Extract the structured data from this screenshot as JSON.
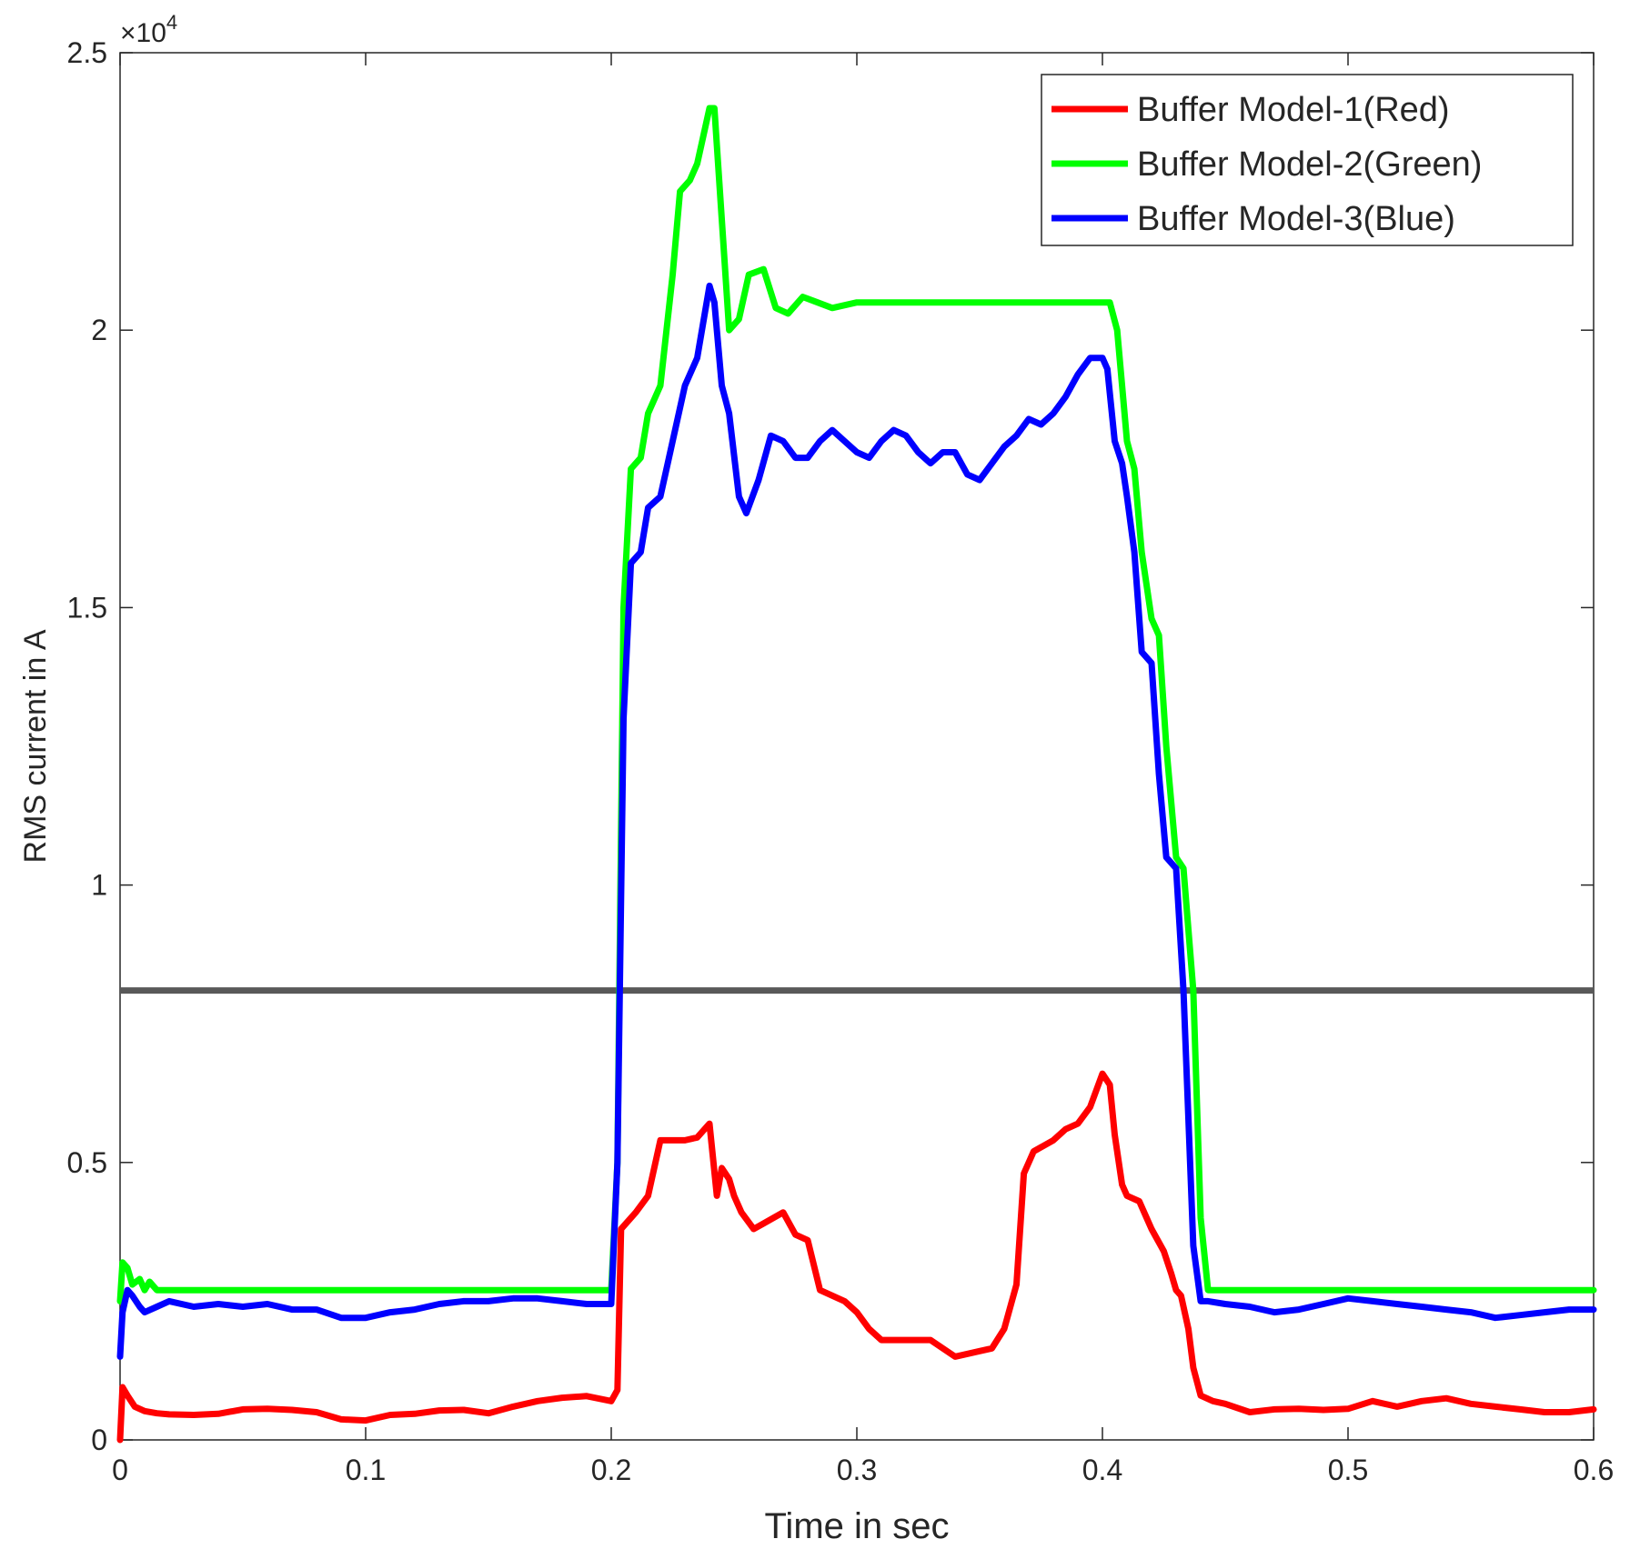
{
  "chart_data": {
    "type": "line",
    "title": "",
    "xlabel": "Time in sec",
    "ylabel": "RMS current in A",
    "y_exponent_label": "×10",
    "y_exponent_power": "4",
    "xlim": [
      0,
      0.6
    ],
    "ylim": [
      0,
      25000
    ],
    "xticks": [
      0,
      0.1,
      0.2,
      0.3,
      0.4,
      0.5,
      0.6
    ],
    "xtick_labels": [
      "0",
      "0.1",
      "0.2",
      "0.3",
      "0.4",
      "0.5",
      "0.6"
    ],
    "yticks": [
      0,
      5000,
      10000,
      15000,
      20000,
      25000
    ],
    "ytick_labels": [
      "0",
      "0.5",
      "1",
      "1.5",
      "2",
      "2.5"
    ],
    "grid": false,
    "legend_position": "top-right",
    "reference_line": {
      "y": 8100,
      "color": "#595959"
    },
    "series": [
      {
        "name": "Buffer Model-1(Red)",
        "color": "#ff0000",
        "x": [
          0,
          0.001,
          0.003,
          0.006,
          0.01,
          0.015,
          0.02,
          0.03,
          0.04,
          0.05,
          0.06,
          0.07,
          0.08,
          0.09,
          0.1,
          0.11,
          0.12,
          0.13,
          0.14,
          0.15,
          0.16,
          0.17,
          0.18,
          0.19,
          0.2,
          0.2025,
          0.204,
          0.21,
          0.215,
          0.22,
          0.225,
          0.23,
          0.235,
          0.24,
          0.243,
          0.245,
          0.248,
          0.25,
          0.253,
          0.258,
          0.262,
          0.27,
          0.275,
          0.28,
          0.285,
          0.29,
          0.295,
          0.3,
          0.305,
          0.31,
          0.32,
          0.33,
          0.34,
          0.35,
          0.355,
          0.36,
          0.365,
          0.368,
          0.372,
          0.38,
          0.385,
          0.39,
          0.395,
          0.4,
          0.403,
          0.405,
          0.408,
          0.41,
          0.415,
          0.418,
          0.42,
          0.425,
          0.428,
          0.43,
          0.432,
          0.435,
          0.437,
          0.44,
          0.445,
          0.45,
          0.46,
          0.47,
          0.48,
          0.49,
          0.5,
          0.51,
          0.52,
          0.53,
          0.54,
          0.55,
          0.56,
          0.57,
          0.58,
          0.59,
          0.6
        ],
        "values": [
          0,
          950,
          800,
          600,
          520,
          480,
          460,
          450,
          470,
          550,
          560,
          540,
          500,
          370,
          350,
          450,
          470,
          530,
          540,
          480,
          600,
          700,
          760,
          790,
          700,
          900,
          3800,
          4100,
          4400,
          5400,
          5400,
          5400,
          5450,
          5700,
          4400,
          4900,
          4700,
          4400,
          4100,
          3800,
          3900,
          4100,
          3700,
          3600,
          2700,
          2600,
          2500,
          2300,
          2000,
          1800,
          1800,
          1800,
          1500,
          1600,
          1650,
          2000,
          2800,
          4800,
          5200,
          5400,
          5600,
          5700,
          6000,
          6600,
          6400,
          5500,
          4600,
          4400,
          4300,
          4000,
          3800,
          3400,
          3000,
          2700,
          2600,
          2000,
          1300,
          800,
          700,
          650,
          500,
          550,
          560,
          540,
          560,
          700,
          600,
          700,
          750,
          650,
          600,
          550,
          500,
          500,
          550
        ]
      },
      {
        "name": "Buffer Model-2(Green)",
        "color": "#00ff00",
        "x": [
          0,
          0.001,
          0.003,
          0.005,
          0.008,
          0.01,
          0.012,
          0.015,
          0.02,
          0.04,
          0.1,
          0.15,
          0.2,
          0.2025,
          0.205,
          0.208,
          0.212,
          0.215,
          0.22,
          0.225,
          0.228,
          0.232,
          0.235,
          0.24,
          0.242,
          0.245,
          0.248,
          0.252,
          0.256,
          0.262,
          0.267,
          0.272,
          0.278,
          0.284,
          0.29,
          0.3,
          0.32,
          0.35,
          0.4,
          0.403,
          0.406,
          0.41,
          0.413,
          0.416,
          0.42,
          0.423,
          0.426,
          0.43,
          0.433,
          0.437,
          0.44,
          0.443,
          0.45,
          0.5,
          0.55,
          0.6
        ],
        "values": [
          2500,
          3200,
          3100,
          2800,
          2900,
          2700,
          2850,
          2700,
          2700,
          2700,
          2700,
          2700,
          2700,
          5000,
          15000,
          17500,
          17700,
          18500,
          19000,
          21000,
          22500,
          22700,
          23000,
          24000,
          24000,
          22000,
          20000,
          20200,
          21000,
          21100,
          20400,
          20300,
          20600,
          20500,
          20400,
          20500,
          20500,
          20500,
          20500,
          20500,
          20000,
          18000,
          17500,
          16000,
          14800,
          14500,
          12500,
          10500,
          10300,
          8100,
          4000,
          2700,
          2700,
          2700,
          2700,
          2700
        ]
      },
      {
        "name": "Buffer Model-3(Blue)",
        "color": "#0000ff",
        "x": [
          0,
          0.001,
          0.003,
          0.005,
          0.008,
          0.01,
          0.015,
          0.02,
          0.03,
          0.04,
          0.05,
          0.06,
          0.07,
          0.08,
          0.09,
          0.1,
          0.11,
          0.12,
          0.13,
          0.14,
          0.15,
          0.16,
          0.17,
          0.18,
          0.19,
          0.2,
          0.2025,
          0.205,
          0.208,
          0.212,
          0.215,
          0.22,
          0.225,
          0.23,
          0.235,
          0.24,
          0.242,
          0.245,
          0.248,
          0.252,
          0.255,
          0.26,
          0.265,
          0.27,
          0.275,
          0.28,
          0.285,
          0.29,
          0.295,
          0.3,
          0.305,
          0.31,
          0.315,
          0.32,
          0.325,
          0.33,
          0.335,
          0.34,
          0.345,
          0.35,
          0.355,
          0.36,
          0.365,
          0.37,
          0.375,
          0.38,
          0.385,
          0.39,
          0.395,
          0.4,
          0.402,
          0.405,
          0.408,
          0.41,
          0.413,
          0.416,
          0.42,
          0.423,
          0.426,
          0.43,
          0.433,
          0.437,
          0.44,
          0.443,
          0.45,
          0.46,
          0.47,
          0.48,
          0.49,
          0.5,
          0.51,
          0.52,
          0.53,
          0.54,
          0.55,
          0.56,
          0.57,
          0.58,
          0.59,
          0.6
        ],
        "values": [
          1500,
          2300,
          2700,
          2600,
          2400,
          2300,
          2400,
          2500,
          2400,
          2450,
          2400,
          2450,
          2350,
          2350,
          2200,
          2200,
          2300,
          2350,
          2450,
          2500,
          2500,
          2550,
          2550,
          2500,
          2450,
          2450,
          5000,
          13000,
          15800,
          16000,
          16800,
          17000,
          18000,
          19000,
          19500,
          20800,
          20500,
          19000,
          18500,
          17000,
          16700,
          17300,
          18100,
          18000,
          17700,
          17700,
          18000,
          18200,
          18000,
          17800,
          17700,
          18000,
          18200,
          18100,
          17800,
          17600,
          17800,
          17800,
          17400,
          17300,
          17600,
          17900,
          18100,
          18400,
          18300,
          18500,
          18800,
          19200,
          19500,
          19500,
          19300,
          18000,
          17600,
          17000,
          16000,
          14200,
          14000,
          12000,
          10500,
          10300,
          8100,
          3500,
          2500,
          2500,
          2450,
          2400,
          2300,
          2350,
          2450,
          2550,
          2500,
          2450,
          2400,
          2350,
          2300,
          2200,
          2250,
          2300,
          2350,
          2350
        ]
      }
    ]
  }
}
